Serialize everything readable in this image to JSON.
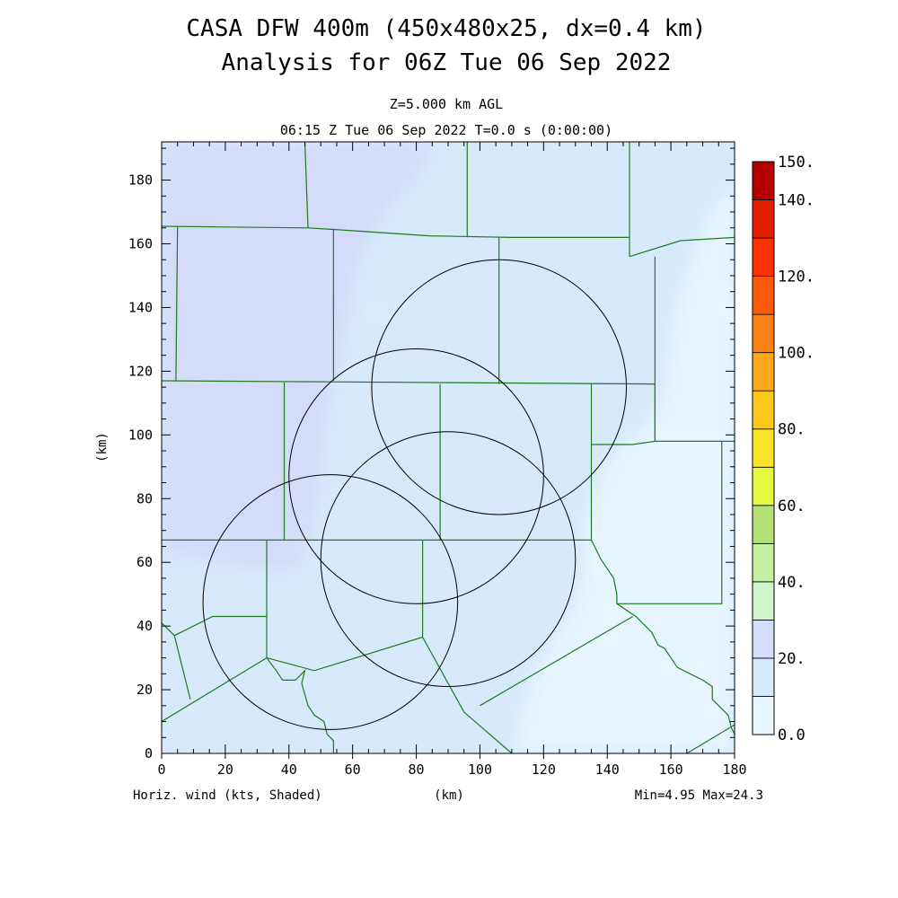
{
  "header": {
    "title_line1": "CASA DFW 400m (450x480x25, dx=0.4 km)",
    "title_line2": "Analysis for 06Z Tue 06 Sep 2022",
    "level": "Z=5.000 km AGL",
    "time": "06:15 Z Tue 06 Sep 2022   T=0.0 s (0:00:00)"
  },
  "footer": {
    "left": "Horiz. wind (kts, Shaded)",
    "center": "(km)",
    "right": "Min=4.95 Max=24.3"
  },
  "chart_data": {
    "type": "heatmap",
    "variable": "Horiz. wind (kts, Shaded)",
    "xlabel": "(km)",
    "ylabel": "(km)",
    "xlim": [
      0,
      180
    ],
    "ylim": [
      0,
      192
    ],
    "x_ticks": [
      "0",
      "20",
      "40",
      "60",
      "80",
      "100",
      "120",
      "140",
      "160",
      "180"
    ],
    "y_ticks": [
      "0",
      "20",
      "40",
      "60",
      "80",
      "100",
      "120",
      "140",
      "160",
      "180"
    ],
    "min": 4.95,
    "max": 24.3,
    "colorbar": {
      "range": [
        0,
        150
      ],
      "step": 10,
      "labels": [
        "0.0",
        "20.",
        "40.",
        "60.",
        "80.",
        "100.",
        "120.",
        "140.",
        "150."
      ],
      "label_values": [
        0,
        20,
        40,
        60,
        80,
        100,
        120,
        140,
        150
      ],
      "colors": [
        "#e6f5ff",
        "#d6eafc",
        "#d4dcfa",
        "#d0f5c8",
        "#c6f0a4",
        "#b4e278",
        "#e4fa40",
        "#f8e428",
        "#fcc81c",
        "#fca81c",
        "#fc8014",
        "#fc5a0c",
        "#fc3200",
        "#e41e00",
        "#b40000"
      ]
    },
    "radar_rings": [
      {
        "center": [
          53,
          47.5
        ],
        "radius": 40
      },
      {
        "center": [
          80,
          87
        ],
        "radius": 40
      },
      {
        "center": [
          90,
          61
        ],
        "radius": 40
      },
      {
        "center": [
          106,
          115
        ],
        "radius": 40
      }
    ],
    "county_lines": [
      [
        [
          0,
          117
        ],
        [
          155,
          116
        ]
      ],
      [
        [
          0,
          67
        ],
        [
          135,
          67
        ]
      ],
      [
        [
          0,
          165.5
        ],
        [
          46,
          165
        ],
        [
          54,
          164.5
        ],
        [
          84,
          162.5
        ],
        [
          110,
          162
        ],
        [
          147,
          162
        ]
      ],
      [
        [
          5,
          165.5
        ],
        [
          4.5,
          117
        ]
      ],
      [
        [
          45,
          192
        ],
        [
          46,
          165
        ]
      ],
      [
        [
          54,
          164.5
        ],
        [
          54,
          117
        ]
      ],
      [
        [
          96,
          192
        ],
        [
          96,
          162
        ]
      ],
      [
        [
          106,
          162
        ],
        [
          106,
          116
        ]
      ],
      [
        [
          147,
          192
        ],
        [
          147,
          156
        ]
      ],
      [
        [
          38.5,
          116.5
        ],
        [
          38.5,
          67
        ]
      ],
      [
        [
          87.5,
          116
        ],
        [
          87.5,
          67
        ]
      ],
      [
        [
          135,
          116
        ],
        [
          135,
          67
        ]
      ],
      [
        [
          135,
          97
        ],
        [
          148,
          97
        ],
        [
          155,
          98
        ],
        [
          155,
          116
        ]
      ],
      [
        [
          155,
          156
        ],
        [
          155,
          98
        ],
        [
          176,
          98
        ],
        [
          176,
          47
        ],
        [
          143,
          47
        ]
      ],
      [
        [
          147,
          156
        ],
        [
          163,
          161
        ],
        [
          180,
          162
        ]
      ],
      [
        [
          176,
          98
        ],
        [
          180,
          98
        ]
      ],
      [
        [
          33,
          67
        ],
        [
          33,
          30
        ],
        [
          48,
          26
        ],
        [
          82,
          36.5
        ],
        [
          82,
          67
        ]
      ],
      [
        [
          0,
          41
        ],
        [
          4,
          37
        ],
        [
          9,
          17
        ]
      ],
      [
        [
          4,
          37
        ],
        [
          16,
          43
        ],
        [
          33,
          43
        ]
      ],
      [
        [
          0,
          10
        ],
        [
          33,
          30
        ]
      ],
      [
        [
          82,
          36.5
        ],
        [
          95,
          13
        ],
        [
          110,
          0
        ]
      ],
      [
        [
          100,
          15
        ],
        [
          148,
          43
        ]
      ],
      [
        [
          135,
          67
        ],
        [
          138,
          61
        ],
        [
          142,
          55
        ],
        [
          143,
          50
        ],
        [
          143,
          47
        ],
        [
          149,
          43
        ],
        [
          154,
          38
        ],
        [
          156,
          34
        ],
        [
          158,
          33
        ],
        [
          160,
          30
        ],
        [
          162,
          27
        ],
        [
          166,
          25
        ],
        [
          170,
          23
        ],
        [
          173,
          21
        ],
        [
          173,
          17
        ],
        [
          175,
          15
        ],
        [
          178,
          12
        ],
        [
          179,
          8
        ],
        [
          180,
          6
        ]
      ],
      [
        [
          33,
          30
        ],
        [
          36,
          26
        ],
        [
          38,
          23
        ],
        [
          42,
          23
        ],
        [
          45,
          26
        ],
        [
          44,
          22
        ],
        [
          46,
          15
        ],
        [
          48,
          12
        ],
        [
          51,
          10
        ],
        [
          52,
          6
        ],
        [
          54,
          4
        ],
        [
          54,
          0
        ]
      ],
      [
        [
          165,
          0
        ],
        [
          180,
          9
        ]
      ]
    ]
  }
}
